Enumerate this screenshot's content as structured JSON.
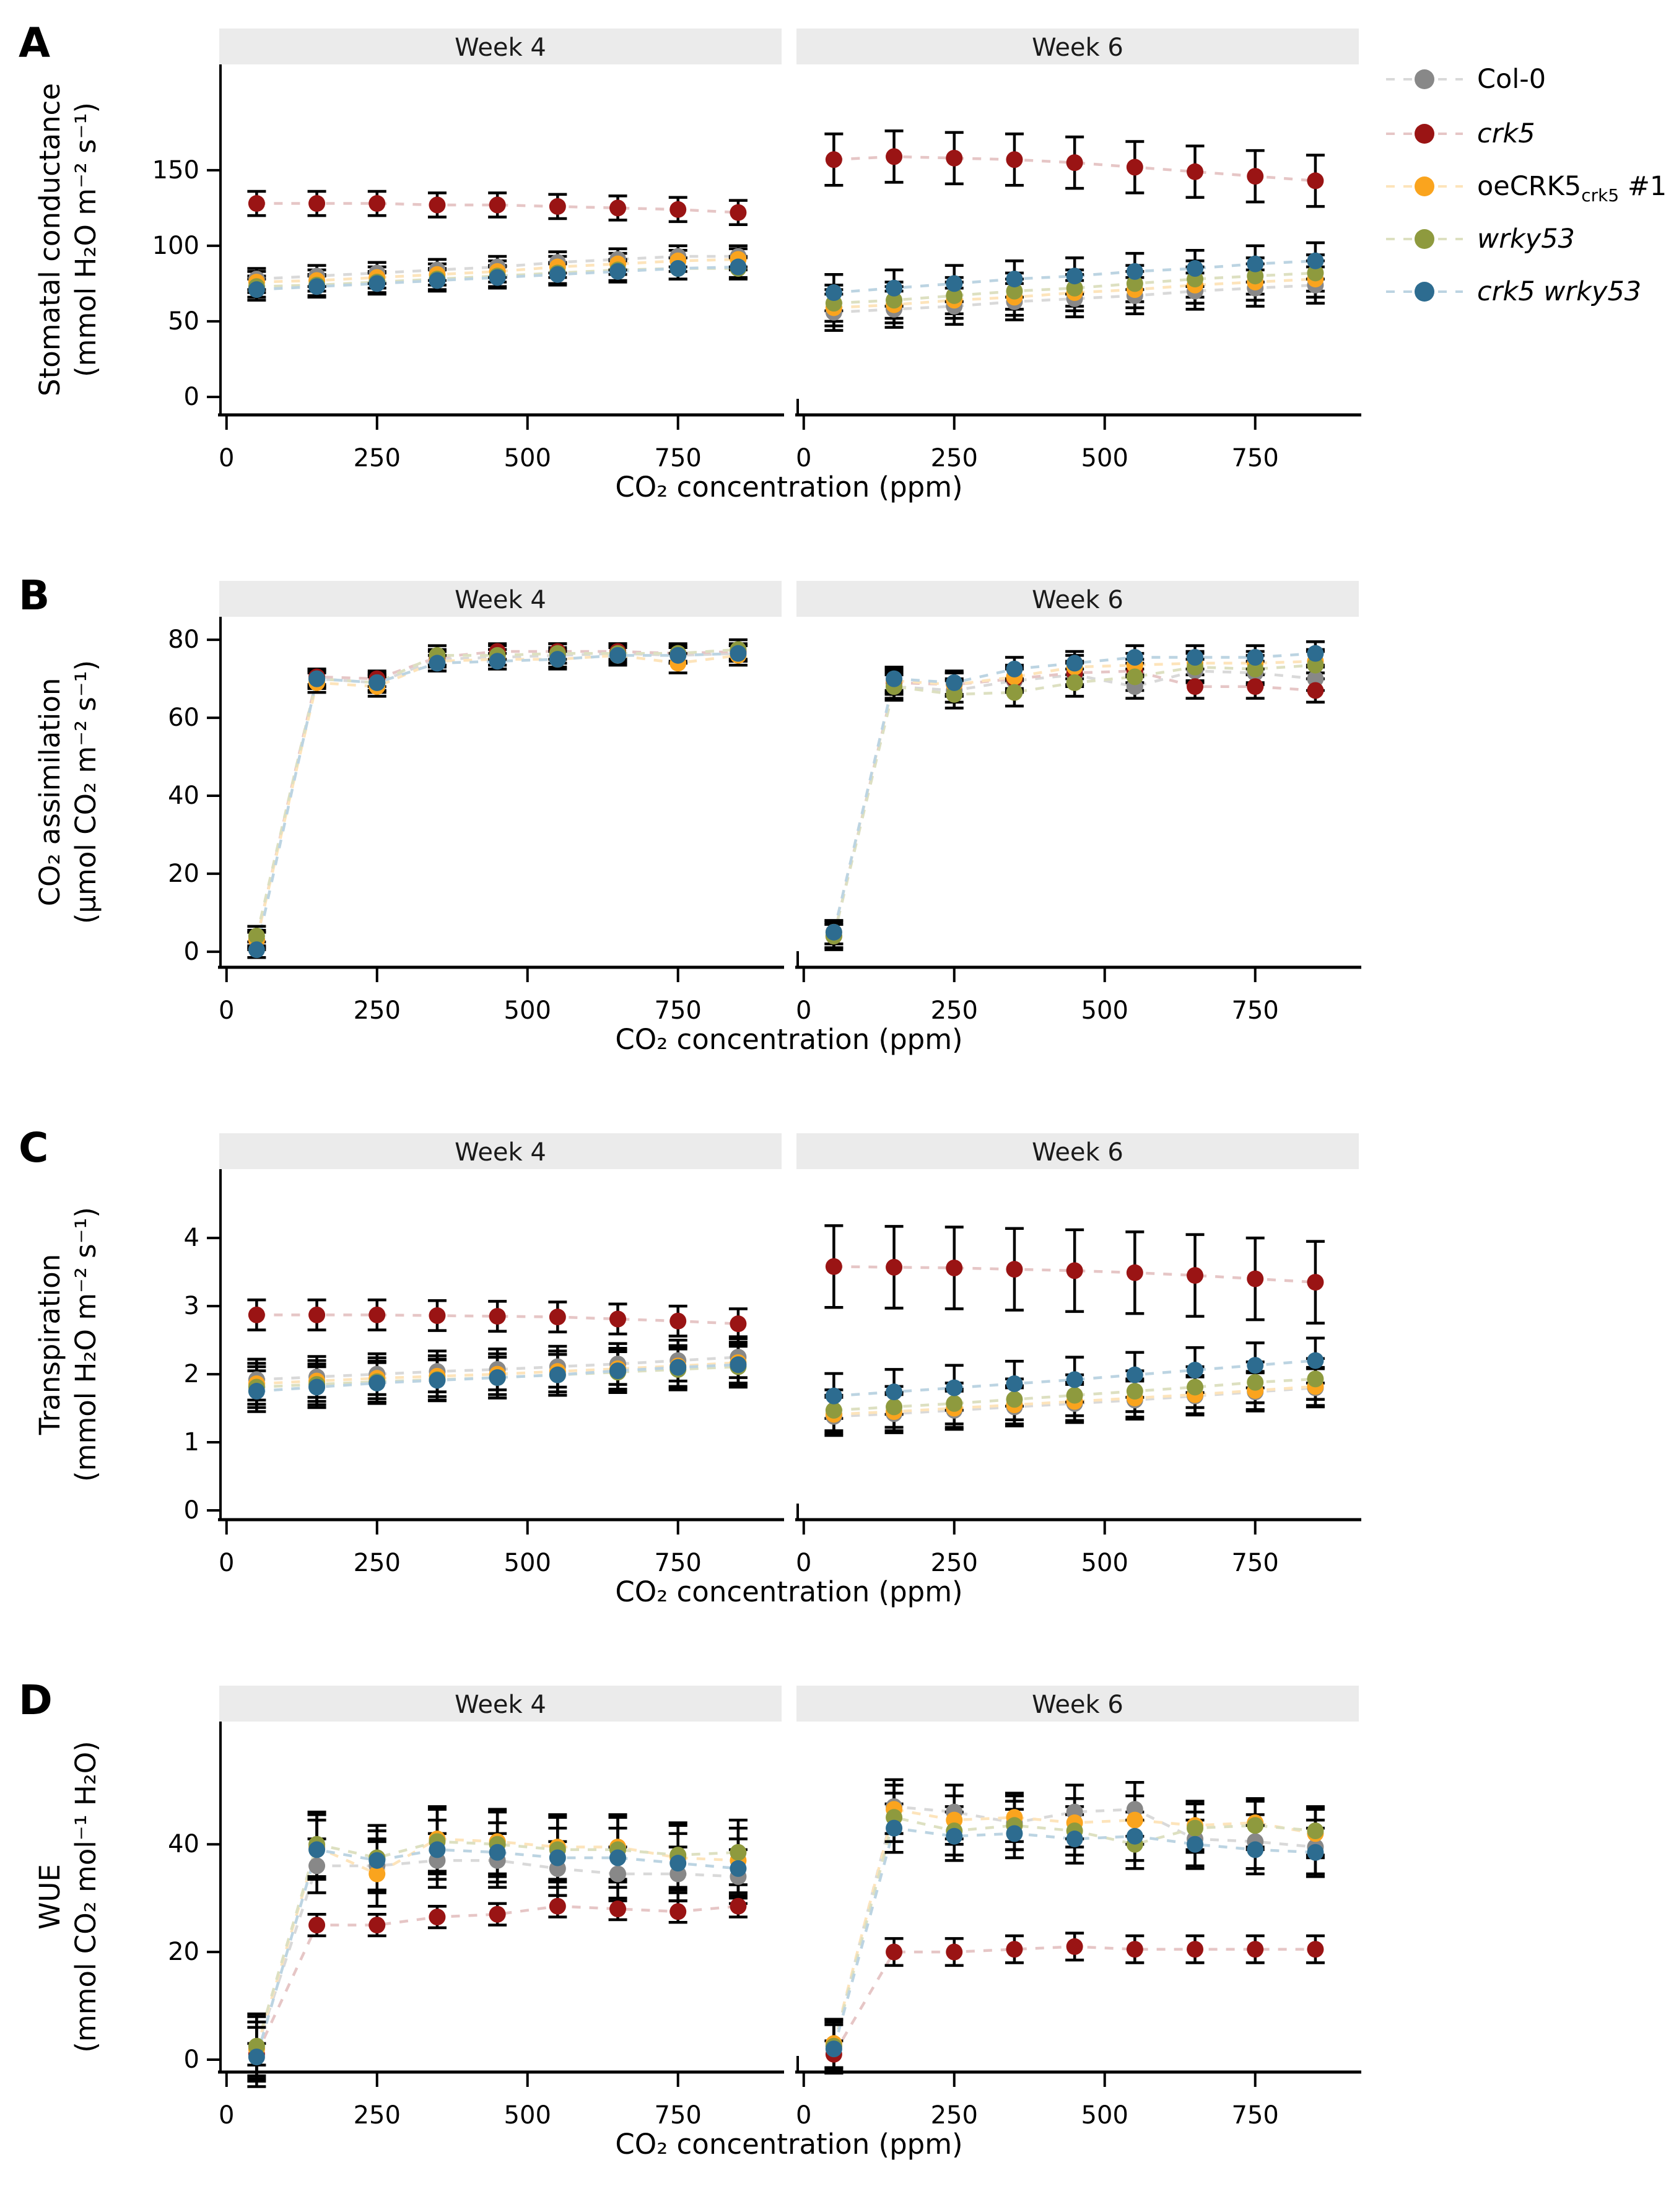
{
  "colors": {
    "background": "#ffffff",
    "strip_bg": "#ebebeb",
    "strip_text": "#1a1a1a",
    "axis": "#000000",
    "errorbar": "#000000",
    "text": "#000000"
  },
  "chart_data": {
    "type": "scatter",
    "description": "Four-panel (A-D) gas-exchange dose-response figure; each panel has Week 4 and Week 6 facets; points with error bars connected by dashed lines",
    "figure_width": 2711,
    "figure_height": 3568,
    "x_label": "CO₂ concentration (ppm)",
    "x_points": [
      50,
      150,
      250,
      350,
      450,
      550,
      650,
      750,
      850
    ],
    "x_ticks": [
      0,
      250,
      500,
      750
    ],
    "x_lim": [
      -8,
      918
    ],
    "facet_titles": [
      "Week 4",
      "Week 6"
    ],
    "legend": {
      "position": "top-right",
      "item_y": [
        128,
        216,
        301,
        386,
        471
      ],
      "items": [
        {
          "key": "col0",
          "label_segments": [
            {
              "t": "Col-0"
            }
          ],
          "italic": false,
          "color": "#888888",
          "pale_color": "#d9d9d9"
        },
        {
          "key": "crk5",
          "label_segments": [
            {
              "t": "crk5"
            }
          ],
          "italic": true,
          "color": "#9a1414",
          "pale_color": "#e6c6c6"
        },
        {
          "key": "oe",
          "label_segments": [
            {
              "t": "oeCRK5"
            },
            {
              "t": "crk5",
              "sub": true
            },
            {
              "t": " #1"
            }
          ],
          "italic": false,
          "color": "#faa41e",
          "pale_color": "#fde4bb"
        },
        {
          "key": "wrky",
          "label_segments": [
            {
              "t": "wrky53"
            }
          ],
          "italic": true,
          "color": "#8e9a3e",
          "pale_color": "#dde0c1"
        },
        {
          "key": "cw",
          "label_segments": [
            {
              "t": "crk5 wrky53"
            }
          ],
          "italic": true,
          "color": "#2d6c90",
          "pale_color": "#bcd4e2"
        }
      ]
    },
    "panels": [
      {
        "letter": "A",
        "y_label_line1": "Stomatal conductance",
        "y_label_line2": "(mmol H₂O m⁻² s⁻¹)",
        "y_ticks": [
          0,
          50,
          100,
          150
        ],
        "y_lim": [
          -11.9,
          220
        ],
        "facets": [
          {
            "title": "Week 4",
            "values": {
              "col0": [
                78,
                80,
                82,
                84,
                86,
                89,
                91,
                93,
                93
              ],
              "crk5": [
                128,
                128,
                128,
                127,
                127,
                126,
                125,
                124,
                122
              ],
              "oe": [
                76,
                77,
                79,
                81,
                83,
                86,
                88,
                90,
                91
              ],
              "wrky": [
                73,
                74,
                76,
                78,
                80,
                82,
                84,
                85,
                85
              ],
              "cw": [
                71,
                73,
                75,
                77,
                79,
                81,
                83,
                85,
                86
              ]
            },
            "errors": {
              "col0": 7,
              "crk5": 8,
              "oe": 7,
              "wrky": 7,
              "cw": 7
            }
          },
          {
            "title": "Week 6",
            "values": {
              "col0": [
                56,
                58,
                60,
                63,
                65,
                67,
                70,
                72,
                74
              ],
              "crk5": [
                157,
                159,
                158,
                157,
                155,
                152,
                149,
                146,
                143
              ],
              "oe": [
                59,
                61,
                64,
                66,
                69,
                71,
                74,
                76,
                78
              ],
              "wrky": [
                62,
                64,
                67,
                70,
                72,
                75,
                78,
                80,
                82
              ],
              "cw": [
                69,
                72,
                75,
                78,
                80,
                83,
                85,
                88,
                90
              ]
            },
            "errors": {
              "col0": 12,
              "crk5": 17,
              "oe": 12,
              "wrky": 12,
              "cw": 12
            }
          }
        ]
      },
      {
        "letter": "B",
        "y_label_line1": "CO₂ assimilation",
        "y_label_line2": "(µmol CO₂ m⁻² s⁻¹)",
        "y_ticks": [
          0,
          20,
          40,
          60,
          80
        ],
        "y_lim": [
          -4,
          85.9
        ],
        "facets": [
          {
            "title": "Week 4",
            "values": {
              "col0": [
                3,
                70,
                69,
                75,
                75.5,
                76,
                76.5,
                76,
                76.5
              ],
              "crk5": [
                3,
                70.5,
                70,
                75.5,
                77,
                77,
                77,
                76.5,
                77
              ],
              "oe": [
                3,
                69,
                68,
                74.5,
                75,
                75,
                76,
                74,
                76
              ],
              "wrky": [
                4,
                70,
                69,
                76,
                76,
                76.5,
                76.5,
                76.5,
                77.5
              ],
              "cw": [
                0.5,
                70,
                69,
                74,
                74.5,
                75,
                76,
                76,
                76.5
              ]
            },
            "errors": {
              "col0": 2,
              "crk5": 2,
              "oe": 2.5,
              "wrky": 2.5,
              "cw": 2
            }
          },
          {
            "title": "Week 6",
            "values": {
              "col0": [
                4,
                68,
                67,
                69.5,
                71,
                68,
                72,
                71.5,
                70
              ],
              "crk5": [
                4,
                69,
                68.5,
                70,
                71.5,
                72,
                68,
                68,
                67
              ],
              "oe": [
                5,
                69.5,
                68.5,
                70.5,
                73,
                73.5,
                74,
                74,
                74.5
              ],
              "wrky": [
                4,
                68,
                66,
                66.5,
                69,
                70.5,
                73,
                72.5,
                73.5
              ],
              "cw": [
                5,
                70,
                69,
                72.5,
                74,
                75.5,
                75.5,
                75.5,
                76.5
              ]
            },
            "errors": {
              "col0": 3,
              "crk5": 3,
              "oe": 3,
              "wrky": 3.5,
              "cw": 3
            }
          }
        ]
      },
      {
        "letter": "C",
        "y_label_line1": "Transpiration",
        "y_label_line2": "(mmol H₂O m⁻² s⁻¹)",
        "y_ticks": [
          0,
          1,
          2,
          3,
          4
        ],
        "y_lim": [
          -0.136,
          5.01
        ],
        "facets": [
          {
            "title": "Week 4",
            "values": {
              "col0": [
                1.92,
                1.96,
                2.0,
                2.04,
                2.07,
                2.11,
                2.15,
                2.2,
                2.25
              ],
              "crk5": [
                2.87,
                2.87,
                2.87,
                2.86,
                2.85,
                2.84,
                2.81,
                2.78,
                2.74
              ],
              "oe": [
                1.86,
                1.9,
                1.94,
                1.97,
                2.0,
                2.04,
                2.08,
                2.12,
                2.17
              ],
              "wrky": [
                1.81,
                1.85,
                1.89,
                1.92,
                1.95,
                1.99,
                2.03,
                2.07,
                2.11
              ],
              "cw": [
                1.75,
                1.81,
                1.87,
                1.91,
                1.95,
                1.99,
                2.05,
                2.1,
                2.14
              ]
            },
            "errors": {
              "col0": 0.3,
              "crk5": 0.22,
              "oe": 0.3,
              "wrky": 0.3,
              "cw": 0.3
            }
          },
          {
            "title": "Week 6",
            "values": {
              "col0": [
                1.38,
                1.42,
                1.47,
                1.52,
                1.57,
                1.62,
                1.68,
                1.74,
                1.8
              ],
              "crk5": [
                3.58,
                3.57,
                3.56,
                3.54,
                3.52,
                3.49,
                3.45,
                3.4,
                3.35
              ],
              "oe": [
                1.41,
                1.45,
                1.5,
                1.55,
                1.6,
                1.65,
                1.7,
                1.76,
                1.82
              ],
              "wrky": [
                1.47,
                1.52,
                1.57,
                1.63,
                1.69,
                1.75,
                1.81,
                1.88,
                1.93
              ],
              "cw": [
                1.68,
                1.74,
                1.8,
                1.86,
                1.92,
                1.99,
                2.06,
                2.13,
                2.2
              ]
            },
            "errors": {
              "col0": 0.28,
              "crk5": 0.6,
              "oe": 0.28,
              "wrky": 0.3,
              "cw": 0.33
            }
          }
        ]
      },
      {
        "letter": "D",
        "y_label_line1": "WUE",
        "y_label_line2": "(mmol CO₂ mol⁻¹ H₂O)",
        "y_ticks": [
          0,
          20,
          40
        ],
        "y_lim": [
          -2.3,
          62.8
        ],
        "facets": [
          {
            "title": "Week 4",
            "values": {
              "col0": [
                2,
                36,
                36,
                37,
                37,
                35.5,
                34.5,
                34.5,
                34
              ],
              "crk5": [
                1,
                25,
                25,
                26.5,
                27,
                28.5,
                28,
                27.5,
                28.5
              ],
              "oe": [
                2,
                39.5,
                34.5,
                41,
                40.5,
                39.5,
                39.5,
                37.5,
                37
              ],
              "wrky": [
                2.5,
                40,
                37.5,
                40.5,
                40,
                39,
                39,
                38,
                38.5
              ],
              "cw": [
                0.5,
                39,
                37,
                39,
                38.5,
                37.5,
                37.5,
                36.5,
                35.5
              ]
            },
            "errors": {
              "col0": 5,
              "crk5": 2,
              "oe": 6,
              "wrky": 6,
              "cw": 5.5
            }
          },
          {
            "title": "Week 6",
            "values": {
              "col0": [
                2.5,
                47,
                46,
                44,
                46,
                46.5,
                41,
                40.5,
                39.5
              ],
              "crk5": [
                1,
                20,
                20,
                20.5,
                21,
                20.5,
                20.5,
                20.5,
                20.5
              ],
              "oe": [
                3,
                46.5,
                44.5,
                45,
                44,
                44.5,
                43.5,
                44,
                42
              ],
              "wrky": [
                2.5,
                45,
                42.5,
                43.5,
                42.5,
                40,
                43,
                43.5,
                42.5
              ],
              "cw": [
                2,
                43,
                41.5,
                42,
                41,
                41.5,
                40,
                39,
                38.5
              ]
            },
            "errors": {
              "col0": 5,
              "crk5": 2.5,
              "oe": 4.5,
              "wrky": 4.5,
              "cw": 4.5
            }
          }
        ]
      }
    ]
  }
}
